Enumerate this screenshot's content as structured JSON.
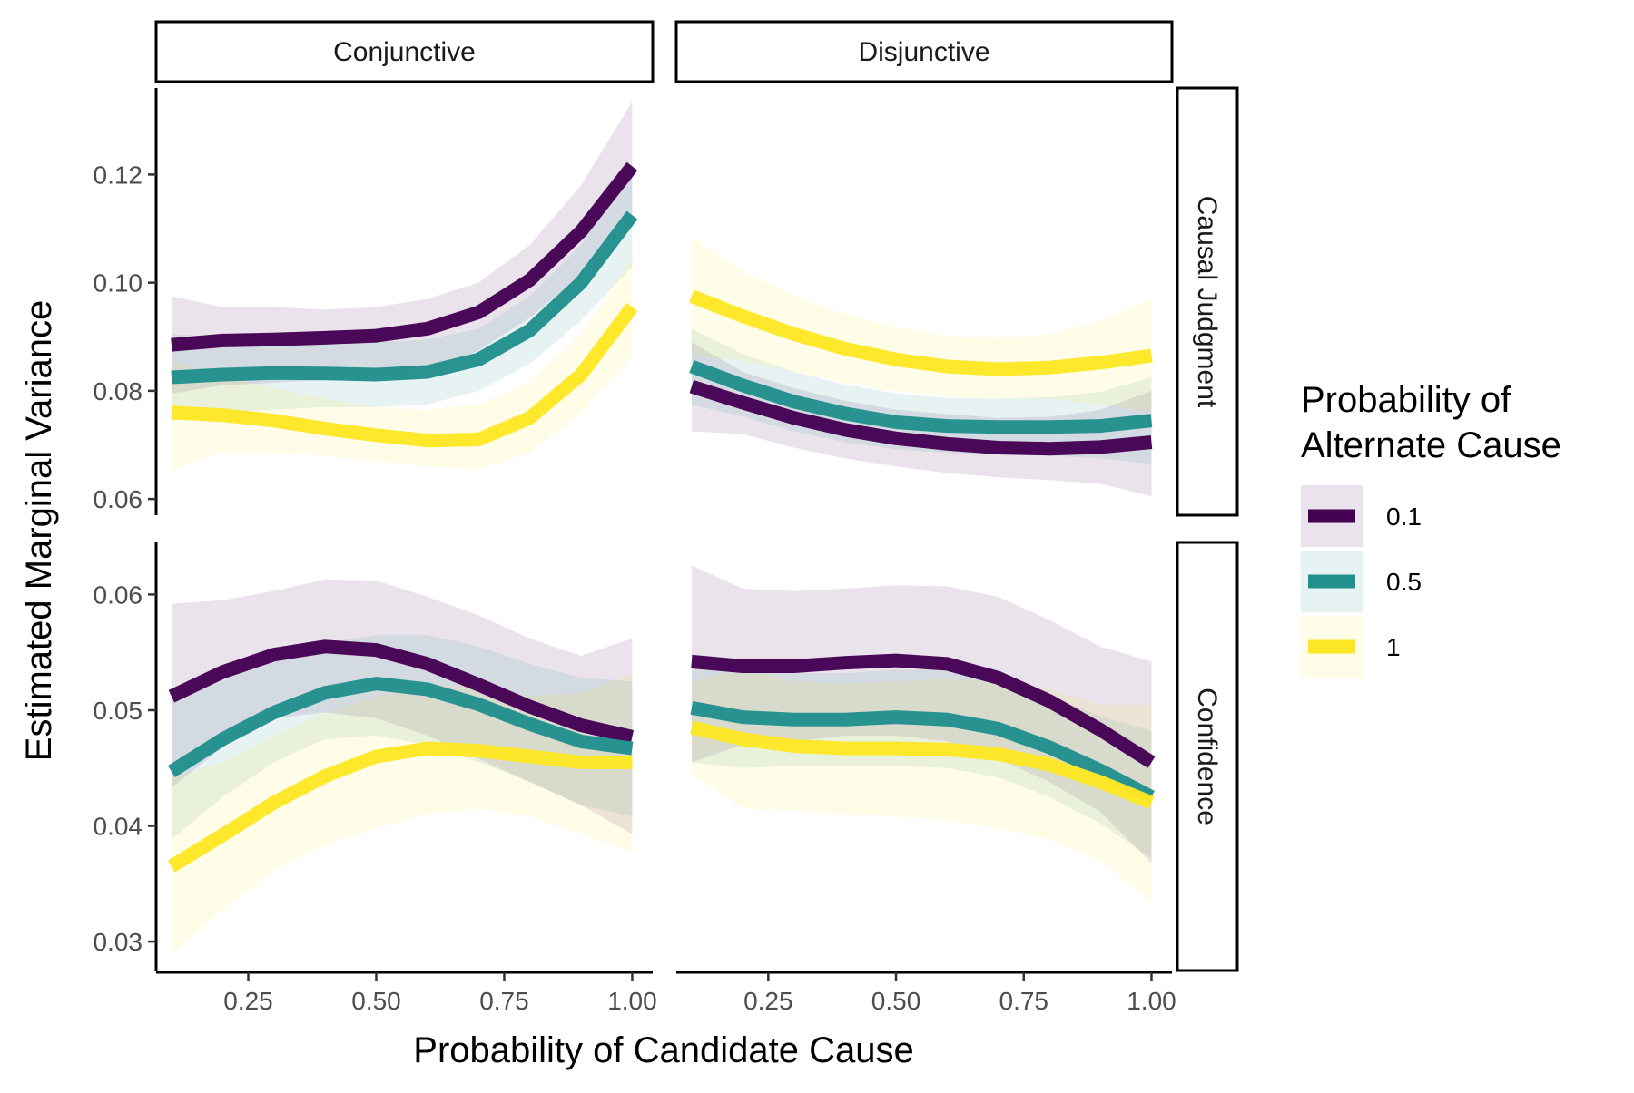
{
  "chart_data": {
    "type": "line",
    "subtype": "faceted line chart with confidence ribbons",
    "xlabel": "Probability of Candidate Cause",
    "ylabel": "Estimated Marginal Variance",
    "column_facets": [
      "Conjunctive",
      "Disjunctive"
    ],
    "row_facets": [
      "Causal Judgment",
      "Confidence"
    ],
    "x": [
      0.1,
      0.2,
      0.3,
      0.4,
      0.5,
      0.6,
      0.7,
      0.8,
      0.9,
      1.0
    ],
    "xlim": [
      0.07,
      1.04
    ],
    "x_ticks": [
      0.25,
      0.5,
      0.75,
      1.0
    ],
    "x_tick_labels": [
      "0.25",
      "0.50",
      "0.75",
      "1.00"
    ],
    "rows": [
      {
        "name": "Causal Judgment",
        "ylim": [
          0.057,
          0.136
        ],
        "y_ticks": [
          0.06,
          0.08,
          0.1,
          0.12
        ],
        "y_tick_labels": [
          "0.06",
          "0.08",
          "0.10",
          "0.12"
        ]
      },
      {
        "name": "Confidence",
        "ylim": [
          0.0275,
          0.0645
        ],
        "y_ticks": [
          0.03,
          0.04,
          0.05,
          0.06
        ],
        "y_tick_labels": [
          "0.03",
          "0.04",
          "0.05",
          "0.06"
        ]
      }
    ],
    "legend": {
      "title": "Probability of Alternate Cause",
      "title_lines": [
        "Probability of",
        "Alternate Cause"
      ],
      "position": "right",
      "entries": [
        {
          "label": "0.1",
          "color": "#440154"
        },
        {
          "label": "0.5",
          "color": "#21908C"
        },
        {
          "label": "1",
          "color": "#FDE725"
        }
      ]
    },
    "panels": [
      {
        "row": 0,
        "col": 0,
        "series": [
          {
            "name": "0.1",
            "values": [
              0.0885,
              0.0893,
              0.0895,
              0.0898,
              0.0902,
              0.0915,
              0.0945,
              0.1005,
              0.1095,
              0.1215
            ],
            "lower": [
              0.0795,
              0.081,
              0.0815,
              0.082,
              0.0825,
              0.0835,
              0.0875,
              0.0935,
              0.1015,
              0.111
            ],
            "upper": [
              0.0975,
              0.0955,
              0.0955,
              0.095,
              0.0955,
              0.097,
              0.1,
              0.107,
              0.118,
              0.1335
            ]
          },
          {
            "name": "0.5",
            "values": [
              0.0825,
              0.083,
              0.0833,
              0.0832,
              0.083,
              0.0835,
              0.0858,
              0.0912,
              0.1,
              0.1125
            ],
            "lower": [
              0.0745,
              0.076,
              0.0765,
              0.077,
              0.077,
              0.0775,
              0.08,
              0.085,
              0.093,
              0.103
            ],
            "upper": [
              0.0905,
              0.09,
              0.0895,
              0.089,
              0.089,
              0.0895,
              0.0915,
              0.0975,
              0.107,
              0.122
            ]
          },
          {
            "name": "1",
            "values": [
              0.076,
              0.0755,
              0.0745,
              0.073,
              0.0718,
              0.0708,
              0.071,
              0.075,
              0.083,
              0.0955
            ],
            "lower": [
              0.0655,
              0.0685,
              0.0685,
              0.068,
              0.067,
              0.066,
              0.0655,
              0.0685,
              0.076,
              0.0865
            ],
            "upper": [
              0.0855,
              0.0825,
              0.0805,
              0.0785,
              0.077,
              0.0765,
              0.0775,
              0.0815,
              0.0905,
              0.1045
            ]
          }
        ]
      },
      {
        "row": 0,
        "col": 1,
        "series": [
          {
            "name": "0.1",
            "values": [
              0.0808,
              0.0778,
              0.075,
              0.0728,
              0.0712,
              0.0702,
              0.0695,
              0.0693,
              0.0696,
              0.0705
            ],
            "lower": [
              0.0725,
              0.072,
              0.0695,
              0.0675,
              0.066,
              0.0648,
              0.064,
              0.0635,
              0.0628,
              0.0605
            ],
            "upper": [
              0.089,
              0.0835,
              0.0805,
              0.0782,
              0.0765,
              0.0757,
              0.075,
              0.0752,
              0.0765,
              0.08
            ]
          },
          {
            "name": "0.5",
            "values": [
              0.0845,
              0.081,
              0.078,
              0.0758,
              0.0742,
              0.0735,
              0.0733,
              0.0733,
              0.0735,
              0.0745
            ],
            "lower": [
              0.0775,
              0.0752,
              0.0725,
              0.0705,
              0.0692,
              0.0685,
              0.0682,
              0.068,
              0.0675,
              0.0665
            ],
            "upper": [
              0.0915,
              0.0868,
              0.0835,
              0.0812,
              0.0795,
              0.0787,
              0.0785,
              0.0788,
              0.0798,
              0.0825
            ]
          },
          {
            "name": "1",
            "values": [
              0.0975,
              0.0938,
              0.0905,
              0.0878,
              0.0858,
              0.0845,
              0.084,
              0.0843,
              0.0852,
              0.0865
            ],
            "lower": [
              0.0865,
              0.0855,
              0.0835,
              0.0815,
              0.08,
              0.079,
              0.0785,
              0.0785,
              0.0775,
              0.076
            ],
            "upper": [
              0.1085,
              0.102,
              0.0975,
              0.0942,
              0.0918,
              0.0902,
              0.0898,
              0.0905,
              0.093,
              0.097
            ]
          }
        ]
      },
      {
        "row": 1,
        "col": 0,
        "series": [
          {
            "name": "0.1",
            "values": [
              0.0512,
              0.0533,
              0.0548,
              0.0555,
              0.0552,
              0.054,
              0.0522,
              0.0503,
              0.0487,
              0.0477
            ],
            "lower": [
              0.0433,
              0.0468,
              0.0493,
              0.0498,
              0.0493,
              0.0478,
              0.0458,
              0.0438,
              0.0418,
              0.0393
            ],
            "upper": [
              0.0592,
              0.0595,
              0.0603,
              0.0613,
              0.0612,
              0.0598,
              0.0582,
              0.0562,
              0.0547,
              0.0562
            ]
          },
          {
            "name": "0.5",
            "values": [
              0.0447,
              0.0475,
              0.0498,
              0.0515,
              0.0523,
              0.0518,
              0.0505,
              0.0488,
              0.0473,
              0.0467
            ],
            "lower": [
              0.0388,
              0.0425,
              0.0455,
              0.0475,
              0.0478,
              0.047,
              0.0455,
              0.0438,
              0.0418,
              0.0408
            ],
            "upper": [
              0.0508,
              0.0525,
              0.0545,
              0.0558,
              0.0565,
              0.0565,
              0.0555,
              0.054,
              0.0528,
              0.0525
            ]
          },
          {
            "name": "1",
            "values": [
              0.0365,
              0.0392,
              0.042,
              0.0443,
              0.046,
              0.0467,
              0.0465,
              0.046,
              0.0455,
              0.0455
            ],
            "lower": [
              0.0288,
              0.0328,
              0.0362,
              0.0383,
              0.0398,
              0.041,
              0.0415,
              0.0408,
              0.0393,
              0.0378
            ],
            "upper": [
              0.0442,
              0.0455,
              0.0478,
              0.0498,
              0.0512,
              0.0522,
              0.052,
              0.0512,
              0.0515,
              0.0532
            ]
          }
        ]
      },
      {
        "row": 1,
        "col": 1,
        "series": [
          {
            "name": "0.1",
            "values": [
              0.0542,
              0.0538,
              0.0538,
              0.0541,
              0.0543,
              0.054,
              0.0528,
              0.0508,
              0.0483,
              0.0455
            ],
            "lower": [
              0.0455,
              0.047,
              0.0473,
              0.0478,
              0.0478,
              0.0473,
              0.0458,
              0.0438,
              0.0412,
              0.0368
            ],
            "upper": [
              0.0625,
              0.0605,
              0.0603,
              0.0605,
              0.0608,
              0.0607,
              0.0598,
              0.0578,
              0.0555,
              0.0542
            ]
          },
          {
            "name": "0.5",
            "values": [
              0.0502,
              0.0494,
              0.0492,
              0.0492,
              0.0494,
              0.0492,
              0.0484,
              0.0468,
              0.0448,
              0.0425
            ],
            "lower": [
              0.0455,
              0.045,
              0.0452,
              0.0452,
              0.0452,
              0.045,
              0.0442,
              0.0425,
              0.0402,
              0.0372
            ],
            "upper": [
              0.0548,
              0.0538,
              0.0532,
              0.0532,
              0.0535,
              0.0535,
              0.0528,
              0.0512,
              0.0495,
              0.0482
            ]
          },
          {
            "name": "1",
            "values": [
              0.0485,
              0.0475,
              0.0469,
              0.0467,
              0.0467,
              0.0466,
              0.0462,
              0.0453,
              0.0438,
              0.042
            ],
            "lower": [
              0.0445,
              0.0415,
              0.0413,
              0.041,
              0.0408,
              0.0405,
              0.0398,
              0.0388,
              0.037,
              0.0335
            ],
            "upper": [
              0.0525,
              0.0535,
              0.0525,
              0.0523,
              0.0525,
              0.0527,
              0.0525,
              0.0518,
              0.0505,
              0.0505
            ]
          }
        ]
      }
    ]
  }
}
